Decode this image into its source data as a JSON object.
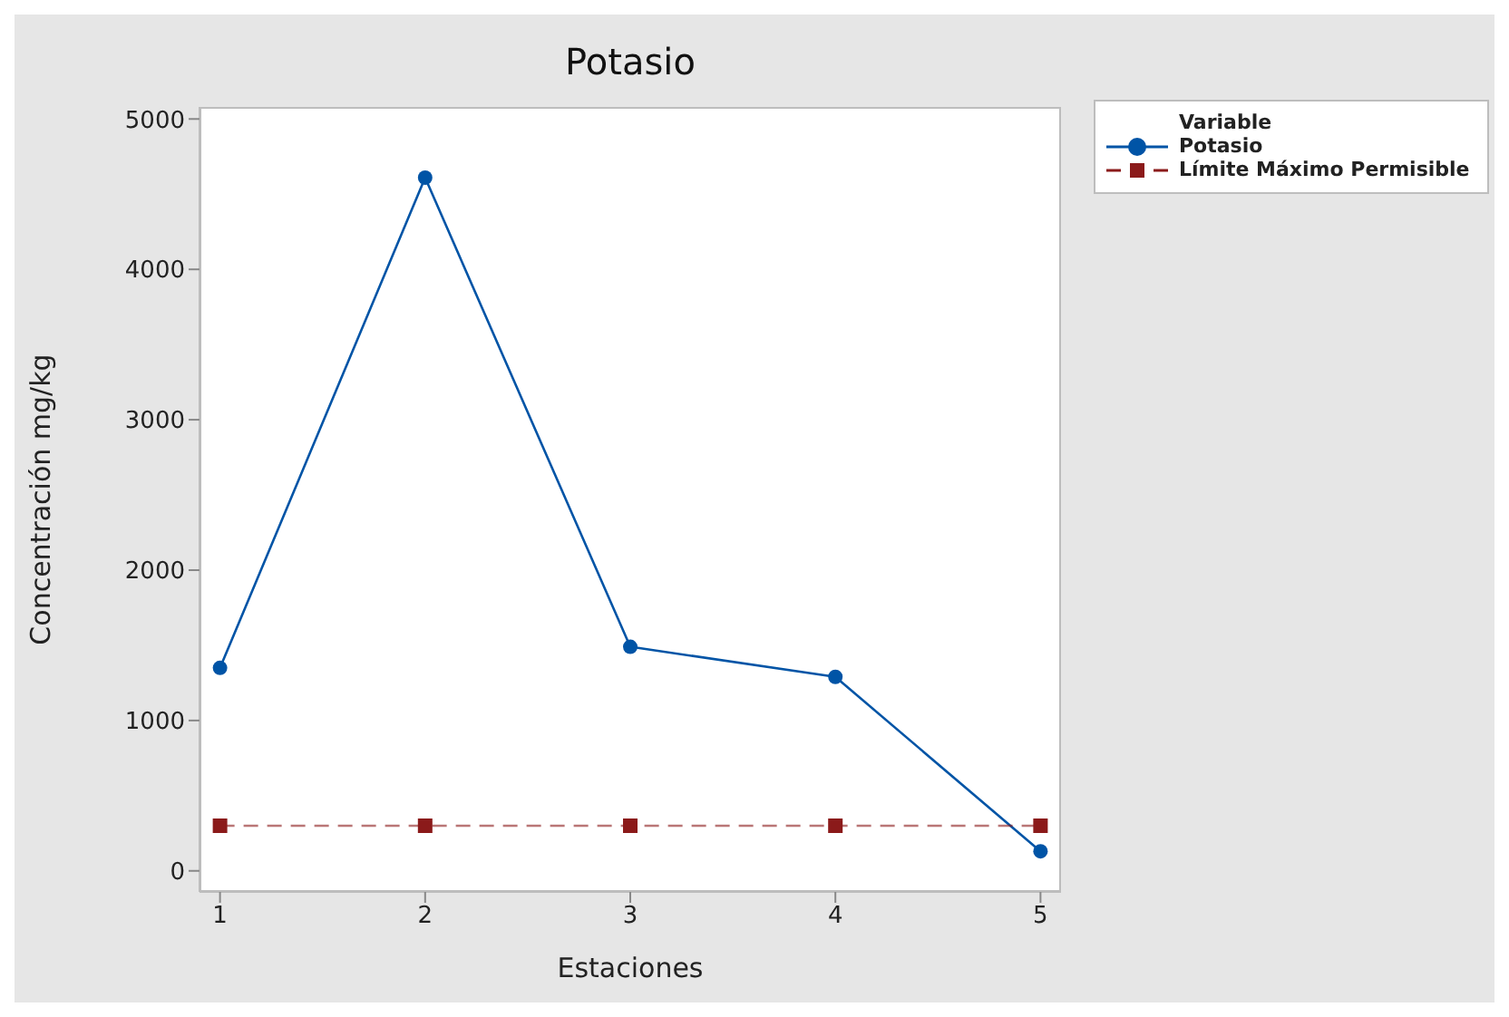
{
  "chart_data": {
    "type": "line",
    "title": "Potasio",
    "xlabel": "Estaciones",
    "ylabel": "Concentración mg/kg",
    "legend_title": "Variable",
    "legend": "top right",
    "x": [
      1,
      2,
      3,
      4,
      5
    ],
    "xlim": [
      0.9,
      5.1
    ],
    "xticks": [
      1,
      2,
      3,
      4,
      5
    ],
    "ylim": [
      -140,
      5080
    ],
    "yticks": [
      0,
      1000,
      2000,
      3000,
      4000,
      5000
    ],
    "series": [
      {
        "name": "Potasio",
        "color": "#0054a6",
        "marker": "circle",
        "line_style": "solid",
        "values": [
          1350,
          4610,
          1490,
          1290,
          130
        ]
      },
      {
        "name": "Límite Máximo Permisible",
        "color": "#8b1a1a",
        "marker": "square",
        "line_style": "dashed",
        "values": [
          300,
          300,
          300,
          300,
          300
        ]
      }
    ]
  }
}
